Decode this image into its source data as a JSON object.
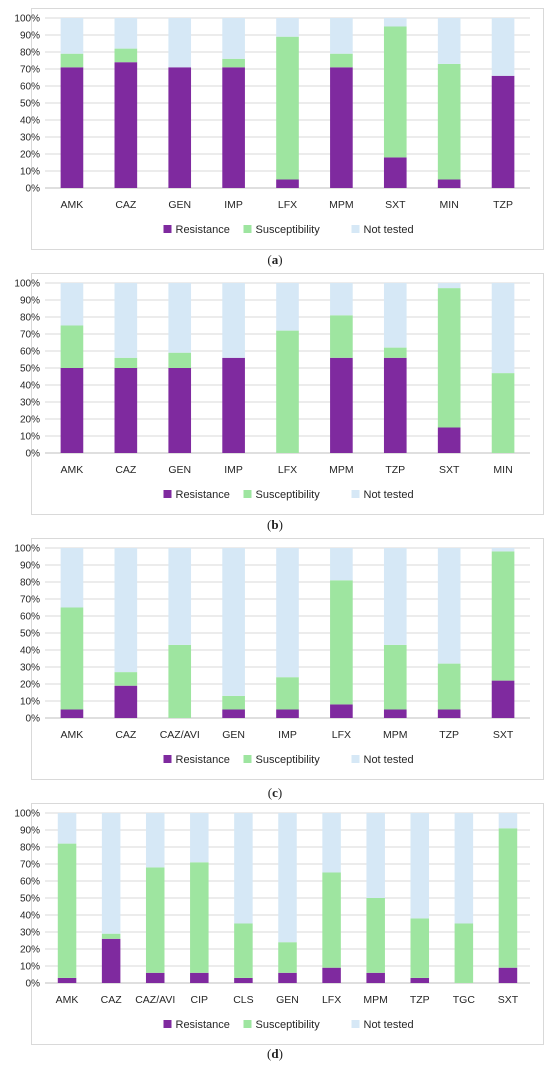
{
  "colors": {
    "Resistance": "#7F2A9F",
    "Susceptibility": "#9EE5A0",
    "Not tested": "#D6E8F6",
    "gridline": "#d9d9d9",
    "axis": "#bfbfbf"
  },
  "legend": [
    "Resistance",
    "Susceptibility",
    "Not tested"
  ],
  "y_ticks": [
    "0%",
    "10%",
    "20%",
    "30%",
    "40%",
    "50%",
    "60%",
    "70%",
    "80%",
    "90%",
    "100%"
  ],
  "chart_data": [
    {
      "type": "bar",
      "stacked": true,
      "panel_label": "a",
      "categories": [
        "AMK",
        "CAZ",
        "GEN",
        "IMP",
        "LFX",
        "MPM",
        "SXT",
        "MIN",
        "TZP"
      ],
      "series": [
        {
          "name": "Resistance",
          "values": [
            71,
            74,
            71,
            71,
            5,
            71,
            18,
            5,
            66
          ]
        },
        {
          "name": "Susceptibility",
          "values": [
            8,
            8,
            0,
            5,
            84,
            8,
            77,
            68,
            0
          ]
        },
        {
          "name": "Not tested",
          "values": [
            21,
            18,
            29,
            24,
            11,
            21,
            5,
            27,
            34
          ]
        }
      ],
      "ylim": [
        0,
        100
      ],
      "y_unit": "%",
      "grid": true,
      "legend_position": "bottom"
    },
    {
      "type": "bar",
      "stacked": true,
      "panel_label": "b",
      "categories": [
        "AMK",
        "CAZ",
        "GEN",
        "IMP",
        "LFX",
        "MPM",
        "TZP",
        "SXT",
        "MIN"
      ],
      "series": [
        {
          "name": "Resistance",
          "values": [
            50,
            50,
            50,
            56,
            0,
            56,
            56,
            15,
            0
          ]
        },
        {
          "name": "Susceptibility",
          "values": [
            25,
            6,
            9,
            0,
            72,
            25,
            6,
            82,
            47
          ]
        },
        {
          "name": "Not tested",
          "values": [
            25,
            44,
            41,
            44,
            28,
            19,
            38,
            3,
            53
          ]
        }
      ],
      "ylim": [
        0,
        100
      ],
      "y_unit": "%",
      "grid": true,
      "legend_position": "bottom"
    },
    {
      "type": "bar",
      "stacked": true,
      "panel_label": "c",
      "categories": [
        "AMK",
        "CAZ",
        "CAZ/AVI",
        "GEN",
        "IMP",
        "LFX",
        "MPM",
        "TZP",
        "SXT"
      ],
      "series": [
        {
          "name": "Resistance",
          "values": [
            5,
            19,
            0,
            5,
            5,
            8,
            5,
            5,
            22
          ]
        },
        {
          "name": "Susceptibility",
          "values": [
            60,
            8,
            43,
            8,
            19,
            73,
            38,
            27,
            76
          ]
        },
        {
          "name": "Not tested",
          "values": [
            35,
            73,
            57,
            87,
            76,
            19,
            57,
            68,
            2
          ]
        }
      ],
      "ylim": [
        0,
        100
      ],
      "y_unit": "%",
      "grid": true,
      "legend_position": "bottom"
    },
    {
      "type": "bar",
      "stacked": true,
      "panel_label": "d",
      "categories": [
        "AMK",
        "CAZ",
        "CAZ/AVI",
        "CIP",
        "CLS",
        "GEN",
        "LFX",
        "MPM",
        "TZP",
        "TGC",
        "SXT"
      ],
      "series": [
        {
          "name": "Resistance",
          "values": [
            3,
            26,
            6,
            6,
            3,
            6,
            9,
            6,
            3,
            0,
            9
          ]
        },
        {
          "name": "Susceptibility",
          "values": [
            79,
            3,
            62,
            65,
            32,
            18,
            56,
            44,
            35,
            35,
            82
          ]
        },
        {
          "name": "Not tested",
          "values": [
            18,
            71,
            32,
            29,
            65,
            76,
            35,
            50,
            62,
            65,
            9
          ]
        }
      ],
      "ylim": [
        0,
        100
      ],
      "y_unit": "%",
      "grid": true,
      "legend_position": "bottom"
    }
  ]
}
